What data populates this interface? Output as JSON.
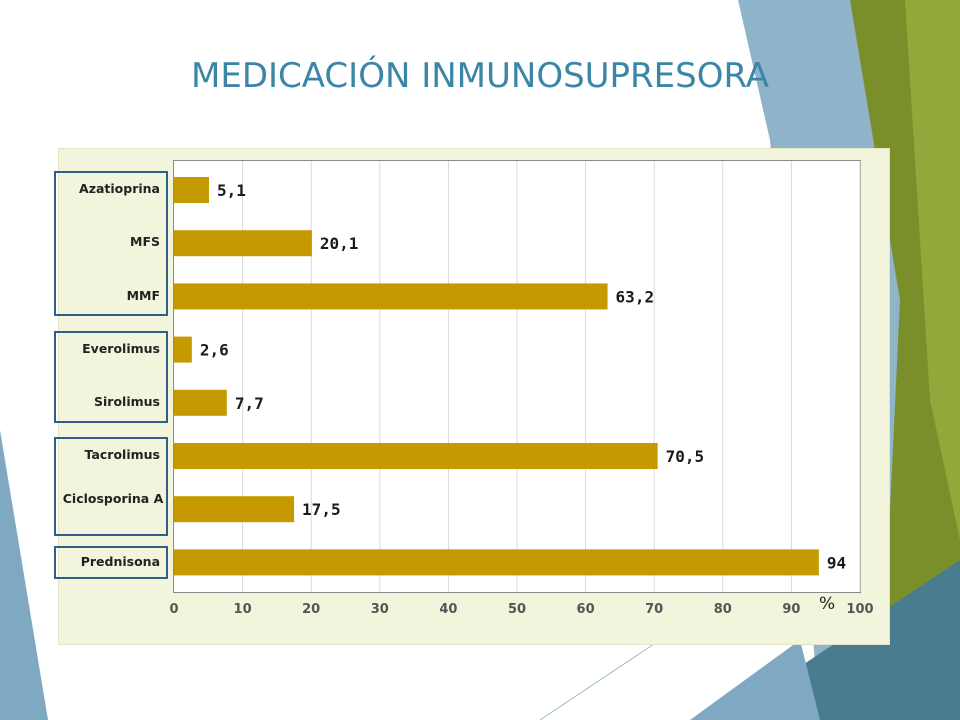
{
  "slide": {
    "title": "MEDICACIÓN INMUNOSUPRESORA",
    "unit": "%"
  },
  "colors": {
    "bar": "#c49a00",
    "title": "#3b86a8",
    "panel": "#f2f5dc",
    "group_border": "#2f5f86",
    "deco_green": "#7a8f2a",
    "deco_blue": "#7fa9c2"
  },
  "chart_data": {
    "type": "bar",
    "orientation": "horizontal",
    "title": "MEDICACIÓN INMUNOSUPRESORA",
    "categories": [
      "Azatioprina",
      "MFS",
      "MMF",
      "Everolimus",
      "Sirolimus",
      "Tacrolimus",
      "Ciclosporina A",
      "Prednisona"
    ],
    "values": [
      5.1,
      20.1,
      63.2,
      2.6,
      7.7,
      70.5,
      17.5,
      94
    ],
    "data_labels": [
      "5,1",
      "20,1",
      "63,2",
      "2,6",
      "7,7",
      "70,5",
      "17,5",
      "94"
    ],
    "xlim": [
      0,
      100
    ],
    "xticks": [
      0,
      10,
      20,
      30,
      40,
      50,
      60,
      70,
      80,
      90,
      100
    ],
    "xlabel": "%",
    "grid": "vertical",
    "groups": [
      [
        "Azatioprina",
        "MFS",
        "MMF"
      ],
      [
        "Everolimus",
        "Sirolimus"
      ],
      [
        "Tacrolimus",
        "Ciclosporina A"
      ],
      [
        "Prednisona"
      ]
    ]
  }
}
